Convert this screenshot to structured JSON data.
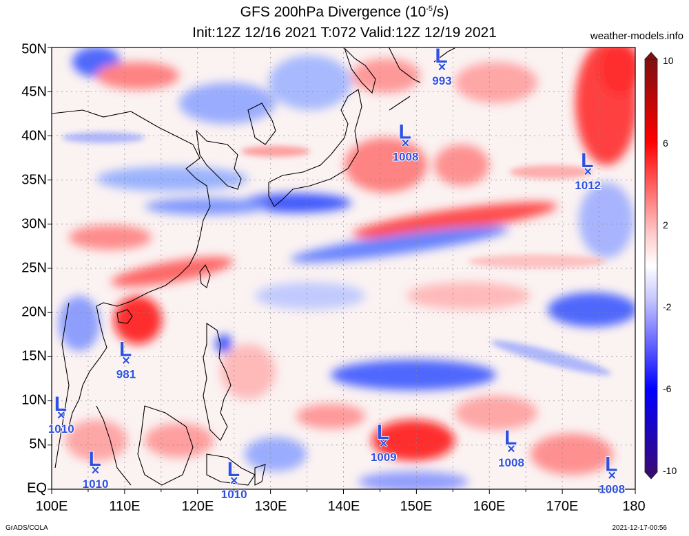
{
  "header": {
    "title_main": "GFS 200hPa Divergence (10",
    "title_sup": "-5",
    "title_end": "/s)",
    "subtitle": "Init:12Z 12/16 2021 T:072 Valid:12Z 12/19 2021",
    "site": "weather-models.info"
  },
  "footer": {
    "credit": "GrADS/COLA",
    "timestamp": "2021-12-17-00:56"
  },
  "map": {
    "lon_labels": [
      "100E",
      "110E",
      "120E",
      "130E",
      "140E",
      "150E",
      "160E",
      "170E",
      "180"
    ],
    "lat_labels": [
      "50N",
      "45N",
      "40N",
      "35N",
      "30N",
      "25N",
      "20N",
      "15N",
      "10N",
      "5N",
      "EQ"
    ],
    "lon_range": [
      100,
      180
    ],
    "lat_range": [
      0,
      50
    ],
    "grid": "dotted"
  },
  "colorbar": {
    "labels": [
      "10",
      "6",
      "2",
      "-2",
      "-6",
      "-10"
    ],
    "colors": {
      "max": "#7f1010",
      "pos": "#ff0000",
      "neg": "#0000ff",
      "min": "#3a0a7a"
    }
  },
  "colors": {
    "low_marker": "#3050e0"
  },
  "lows": [
    {
      "lon": 153.5,
      "lat": 47.8,
      "pressure": "993",
      "letter": "L"
    },
    {
      "lon": 148.5,
      "lat": 39.2,
      "pressure": "1008",
      "letter": "L"
    },
    {
      "lon": 173.5,
      "lat": 36.0,
      "pressure": "1012",
      "letter": "L"
    },
    {
      "lon": 110.2,
      "lat": 14.6,
      "pressure": "981",
      "letter": "L"
    },
    {
      "lon": 101.3,
      "lat": 8.4,
      "pressure": "1010",
      "letter": "L"
    },
    {
      "lon": 145.5,
      "lat": 5.2,
      "pressure": "1009",
      "letter": "L"
    },
    {
      "lon": 163.0,
      "lat": 4.6,
      "pressure": "1008",
      "letter": "L"
    },
    {
      "lon": 106.0,
      "lat": 2.2,
      "pressure": "1010",
      "letter": "L"
    },
    {
      "lon": 125.0,
      "lat": 1.0,
      "pressure": "1010",
      "letter": "L"
    },
    {
      "lon": 176.8,
      "lat": 1.6,
      "pressure": "1008",
      "letter": "L"
    }
  ]
}
